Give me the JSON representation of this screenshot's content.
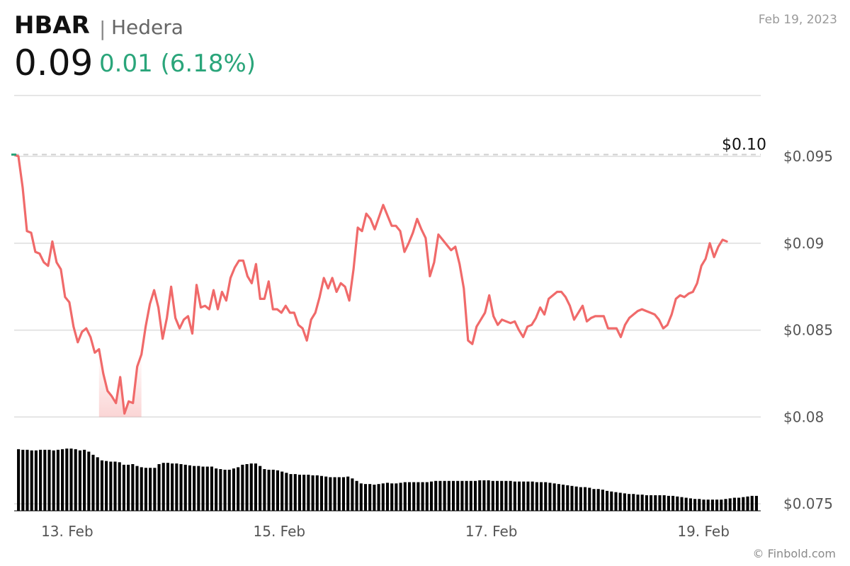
{
  "header": {
    "ticker": "HBAR",
    "separator": "|",
    "name": "Hedera",
    "price": "0.09",
    "change": "0.01 (6.18%)",
    "date": "Feb 19, 2023"
  },
  "footer": {
    "credit": "© Finbold.com"
  },
  "colors": {
    "line": "#f06a6a",
    "positive": "#2aa57a",
    "grid": "#dddddd",
    "volume": "#000000"
  },
  "chart_data": {
    "type": "line",
    "reference_line": {
      "label": "$0.10",
      "value": 0.0951
    },
    "y_ticks": [
      {
        "label": "$0.095",
        "value": 0.095
      },
      {
        "label": "$0.09",
        "value": 0.09
      },
      {
        "label": "$0.085",
        "value": 0.085
      },
      {
        "label": "$0.08",
        "value": 0.08
      },
      {
        "label": "$0.075",
        "value": 0.075
      }
    ],
    "ylim": [
      0.0746,
      0.0985
    ],
    "x_ticks": [
      {
        "label": "13. Feb",
        "x": 12.5
      },
      {
        "label": "15. Feb",
        "x": 62.5
      },
      {
        "label": "17. Feb",
        "x": 112.5
      },
      {
        "label": "19. Feb",
        "x": 162.5
      }
    ],
    "xlim": [
      0,
      176
    ],
    "price": [
      [
        0,
        0.0951
      ],
      [
        1,
        0.095
      ],
      [
        2,
        0.0932
      ],
      [
        3,
        0.0907
      ],
      [
        4,
        0.0906
      ],
      [
        5,
        0.0895
      ],
      [
        6,
        0.0894
      ],
      [
        7,
        0.0889
      ],
      [
        8,
        0.0887
      ],
      [
        9,
        0.0901
      ],
      [
        10,
        0.0889
      ],
      [
        11,
        0.0885
      ],
      [
        12,
        0.0869
      ],
      [
        13,
        0.0866
      ],
      [
        14,
        0.0852
      ],
      [
        15,
        0.0843
      ],
      [
        16,
        0.0849
      ],
      [
        17,
        0.0851
      ],
      [
        18,
        0.0846
      ],
      [
        19,
        0.0837
      ],
      [
        20,
        0.0839
      ],
      [
        21,
        0.0825
      ],
      [
        22,
        0.0815
      ],
      [
        23,
        0.0812
      ],
      [
        24,
        0.0808
      ],
      [
        25,
        0.0823
      ],
      [
        26,
        0.0802
      ],
      [
        27,
        0.0809
      ],
      [
        28,
        0.0808
      ],
      [
        29,
        0.0829
      ],
      [
        30,
        0.0836
      ],
      [
        31,
        0.0852
      ],
      [
        32,
        0.0865
      ],
      [
        33,
        0.0873
      ],
      [
        34,
        0.0863
      ],
      [
        35,
        0.0845
      ],
      [
        36,
        0.0857
      ],
      [
        37,
        0.0875
      ],
      [
        38,
        0.0857
      ],
      [
        39,
        0.0851
      ],
      [
        40,
        0.0856
      ],
      [
        41,
        0.0858
      ],
      [
        42,
        0.0848
      ],
      [
        43,
        0.0876
      ],
      [
        44,
        0.0863
      ],
      [
        45,
        0.0864
      ],
      [
        46,
        0.0862
      ],
      [
        47,
        0.0873
      ],
      [
        48,
        0.0862
      ],
      [
        49,
        0.0872
      ],
      [
        50,
        0.0867
      ],
      [
        51,
        0.088
      ],
      [
        52,
        0.0886
      ],
      [
        53,
        0.089
      ],
      [
        54,
        0.089
      ],
      [
        55,
        0.0881
      ],
      [
        56,
        0.0877
      ],
      [
        57,
        0.0888
      ],
      [
        58,
        0.0868
      ],
      [
        59,
        0.0868
      ],
      [
        60,
        0.0878
      ],
      [
        61,
        0.0862
      ],
      [
        62,
        0.0862
      ],
      [
        63,
        0.086
      ],
      [
        64,
        0.0864
      ],
      [
        65,
        0.086
      ],
      [
        66,
        0.086
      ],
      [
        67,
        0.0853
      ],
      [
        68,
        0.0851
      ],
      [
        69,
        0.0844
      ],
      [
        70,
        0.0856
      ],
      [
        71,
        0.086
      ],
      [
        72,
        0.0869
      ],
      [
        73,
        0.088
      ],
      [
        74,
        0.0874
      ],
      [
        75,
        0.088
      ],
      [
        76,
        0.0872
      ],
      [
        77,
        0.0877
      ],
      [
        78,
        0.0875
      ],
      [
        79,
        0.0867
      ],
      [
        80,
        0.0885
      ],
      [
        81,
        0.0909
      ],
      [
        82,
        0.0907
      ],
      [
        83,
        0.0917
      ],
      [
        84,
        0.0914
      ],
      [
        85,
        0.0908
      ],
      [
        86,
        0.0915
      ],
      [
        87,
        0.0922
      ],
      [
        88,
        0.0916
      ],
      [
        89,
        0.091
      ],
      [
        90,
        0.091
      ],
      [
        91,
        0.0907
      ],
      [
        92,
        0.0895
      ],
      [
        93,
        0.09
      ],
      [
        94,
        0.0906
      ],
      [
        95,
        0.0914
      ],
      [
        96,
        0.0908
      ],
      [
        97,
        0.0903
      ],
      [
        98,
        0.0881
      ],
      [
        99,
        0.0889
      ],
      [
        100,
        0.0905
      ],
      [
        101,
        0.0902
      ],
      [
        102,
        0.0899
      ],
      [
        103,
        0.0896
      ],
      [
        104,
        0.0898
      ],
      [
        105,
        0.0888
      ],
      [
        106,
        0.0874
      ],
      [
        107,
        0.0844
      ],
      [
        108,
        0.0842
      ],
      [
        109,
        0.0852
      ],
      [
        110,
        0.0856
      ],
      [
        111,
        0.086
      ],
      [
        112,
        0.087
      ],
      [
        113,
        0.0858
      ],
      [
        114,
        0.0853
      ],
      [
        115,
        0.0856
      ],
      [
        116,
        0.0855
      ],
      [
        117,
        0.0854
      ],
      [
        118,
        0.0855
      ],
      [
        119,
        0.085
      ],
      [
        120,
        0.0846
      ],
      [
        121,
        0.0852
      ],
      [
        122,
        0.0853
      ],
      [
        123,
        0.0857
      ],
      [
        124,
        0.0863
      ],
      [
        125,
        0.0859
      ],
      [
        126,
        0.0868
      ],
      [
        127,
        0.087
      ],
      [
        128,
        0.0872
      ],
      [
        129,
        0.0872
      ],
      [
        130,
        0.0869
      ],
      [
        131,
        0.0864
      ],
      [
        132,
        0.0856
      ],
      [
        133,
        0.086
      ],
      [
        134,
        0.0864
      ],
      [
        135,
        0.0855
      ],
      [
        136,
        0.0857
      ],
      [
        137,
        0.0858
      ],
      [
        138,
        0.0858
      ],
      [
        139,
        0.0858
      ],
      [
        140,
        0.0851
      ],
      [
        141,
        0.0851
      ],
      [
        142,
        0.0851
      ],
      [
        143,
        0.0846
      ],
      [
        144,
        0.0853
      ],
      [
        145,
        0.0857
      ],
      [
        146,
        0.0859
      ],
      [
        147,
        0.0861
      ],
      [
        148,
        0.0862
      ],
      [
        149,
        0.0861
      ],
      [
        150,
        0.086
      ],
      [
        151,
        0.0859
      ],
      [
        152,
        0.0856
      ],
      [
        153,
        0.0851
      ],
      [
        154,
        0.0853
      ],
      [
        155,
        0.0859
      ],
      [
        156,
        0.0868
      ],
      [
        157,
        0.087
      ],
      [
        158,
        0.0869
      ],
      [
        159,
        0.0871
      ],
      [
        160,
        0.0872
      ],
      [
        161,
        0.0877
      ],
      [
        162,
        0.0887
      ],
      [
        163,
        0.0891
      ],
      [
        164,
        0.09
      ],
      [
        165,
        0.0892
      ],
      [
        166,
        0.0898
      ],
      [
        167,
        0.0902
      ],
      [
        168,
        0.0901
      ]
    ],
    "volume": [
      0.99,
      0.98,
      0.98,
      0.97,
      0.97,
      0.98,
      0.98,
      0.98,
      0.97,
      0.98,
      0.99,
      1.0,
      1.0,
      0.99,
      0.97,
      0.98,
      0.95,
      0.9,
      0.86,
      0.81,
      0.8,
      0.79,
      0.79,
      0.78,
      0.74,
      0.74,
      0.75,
      0.72,
      0.7,
      0.69,
      0.69,
      0.69,
      0.75,
      0.77,
      0.77,
      0.76,
      0.76,
      0.75,
      0.74,
      0.73,
      0.72,
      0.72,
      0.71,
      0.71,
      0.71,
      0.68,
      0.67,
      0.66,
      0.66,
      0.68,
      0.7,
      0.74,
      0.75,
      0.76,
      0.76,
      0.72,
      0.67,
      0.66,
      0.66,
      0.65,
      0.63,
      0.61,
      0.59,
      0.59,
      0.58,
      0.58,
      0.58,
      0.57,
      0.57,
      0.56,
      0.55,
      0.54,
      0.54,
      0.54,
      0.54,
      0.55,
      0.52,
      0.48,
      0.44,
      0.43,
      0.43,
      0.42,
      0.43,
      0.44,
      0.45,
      0.44,
      0.44,
      0.45,
      0.46,
      0.46,
      0.46,
      0.46,
      0.46,
      0.46,
      0.47,
      0.48,
      0.48,
      0.48,
      0.48,
      0.48,
      0.48,
      0.48,
      0.48,
      0.48,
      0.48,
      0.49,
      0.49,
      0.49,
      0.48,
      0.48,
      0.48,
      0.48,
      0.48,
      0.47,
      0.47,
      0.47,
      0.47,
      0.47,
      0.46,
      0.46,
      0.46,
      0.45,
      0.44,
      0.43,
      0.42,
      0.41,
      0.4,
      0.39,
      0.38,
      0.38,
      0.37,
      0.35,
      0.35,
      0.34,
      0.32,
      0.31,
      0.3,
      0.29,
      0.28,
      0.27,
      0.27,
      0.26,
      0.26,
      0.25,
      0.25,
      0.25,
      0.25,
      0.25,
      0.24,
      0.24,
      0.23,
      0.22,
      0.21,
      0.2,
      0.19,
      0.19,
      0.18,
      0.18,
      0.18,
      0.18,
      0.18,
      0.19,
      0.2,
      0.21,
      0.21,
      0.22,
      0.23,
      0.24,
      0.24
    ]
  }
}
